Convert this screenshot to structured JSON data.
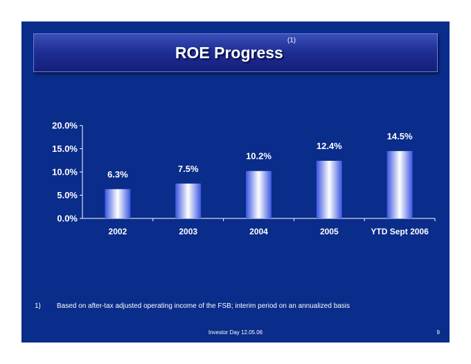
{
  "slide": {
    "title": "ROE Progress",
    "title_note": "(1)",
    "footnote_marker": "1)",
    "footnote_text": "Based on after-tax adjusted operating income of the FSB; interim period on an annualized basis",
    "footer": "Investor Day 12.05.06",
    "page_number": "9"
  },
  "chart_data": {
    "type": "bar",
    "categories": [
      "2002",
      "2003",
      "2004",
      "2005",
      "YTD Sept 2006"
    ],
    "values": [
      6.3,
      7.5,
      10.2,
      12.4,
      14.5
    ],
    "data_labels": [
      "6.3%",
      "7.5%",
      "10.2%",
      "12.4%",
      "14.5%"
    ],
    "yticks": [
      "0.0%",
      "5.0%",
      "10.0%",
      "15.0%",
      "20.0%"
    ],
    "ytick_values": [
      0,
      5,
      10,
      15,
      20
    ],
    "ylim": [
      0,
      20
    ],
    "grid": false,
    "legend": "none",
    "colors": {
      "background": "#0a2c8a",
      "bar_edge": "#3a55e0",
      "bar_center": "#ffffff",
      "text": "#ffffff"
    }
  }
}
